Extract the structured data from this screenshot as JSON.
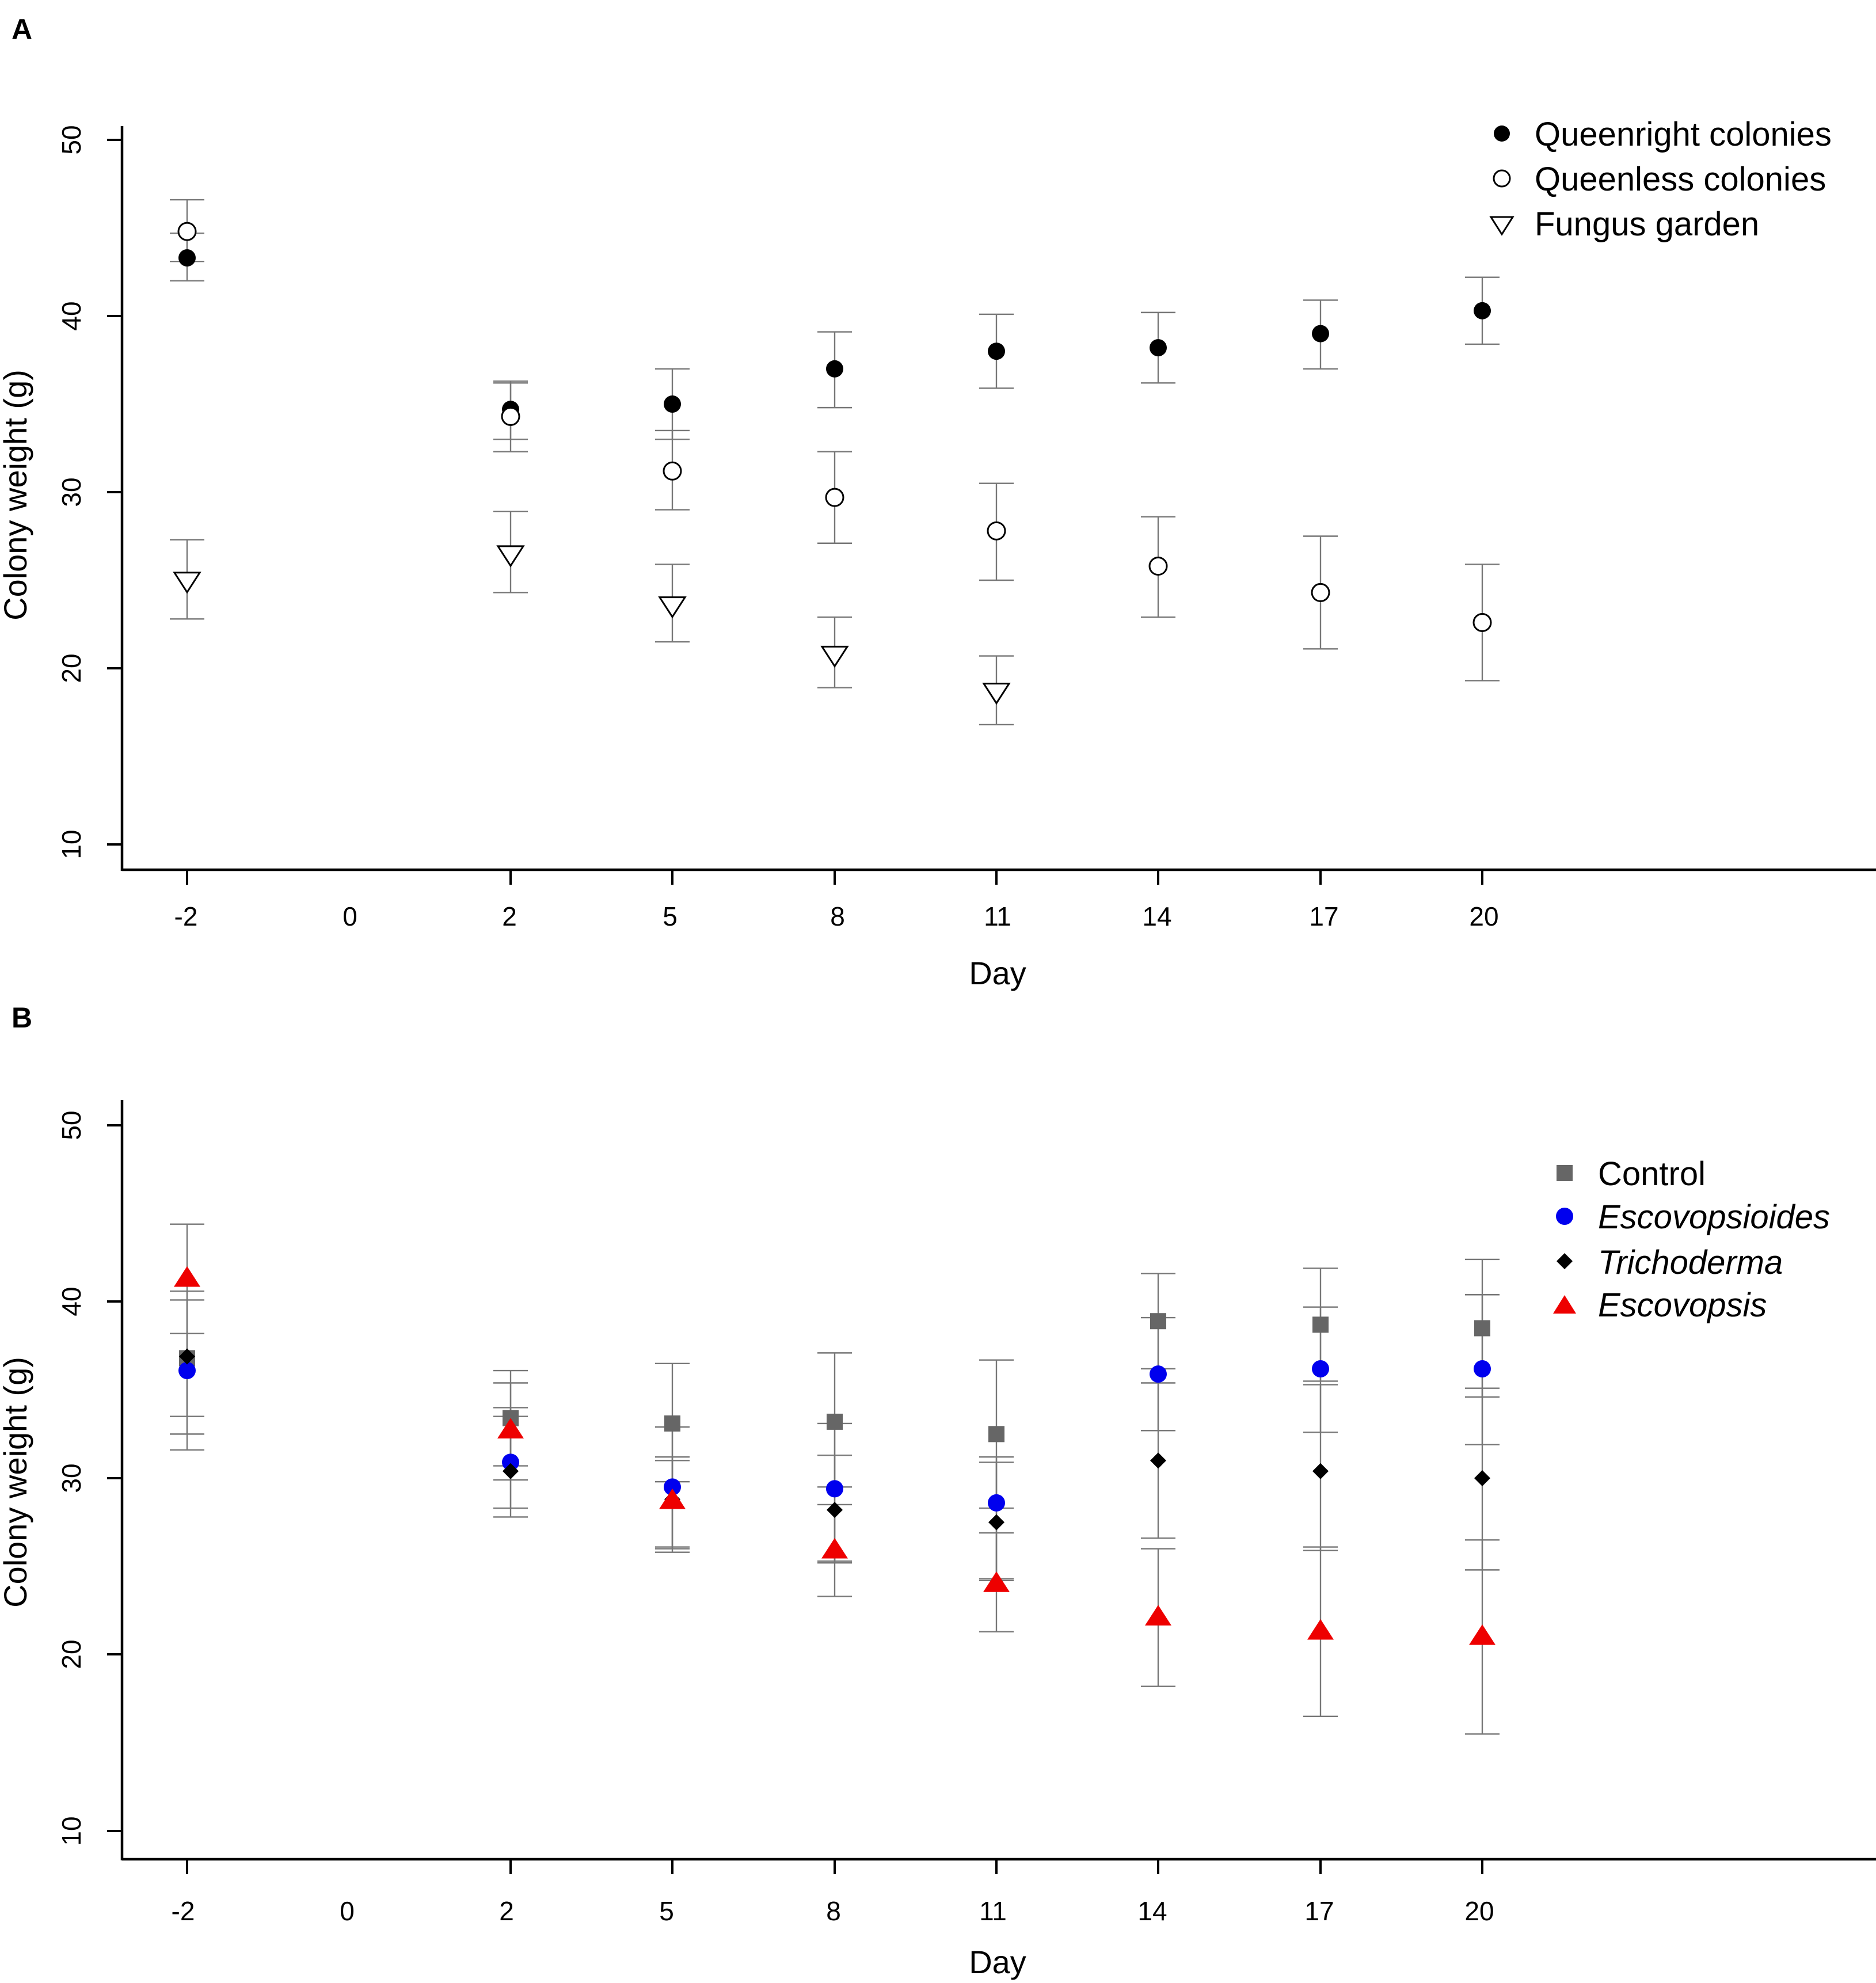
{
  "figure": {
    "panels": [
      {
        "panel_label": "A",
        "xlabel": "Day",
        "ylabel": "Colony weight (g)",
        "x_tick_labels": [
          "-2",
          "0",
          "2",
          "5",
          "8",
          "11",
          "14",
          "17",
          "20"
        ],
        "y_tick_labels": [
          "10",
          "20",
          "30",
          "40",
          "50"
        ],
        "legend": [
          {
            "label": "Queenright colonies",
            "marker": "filled-circle",
            "color": "#000000",
            "italic": false
          },
          {
            "label": "Queenless colonies",
            "marker": "open-circle",
            "color": "#000000",
            "italic": false
          },
          {
            "label": "Fungus garden",
            "marker": "open-triangle-down",
            "color": "#000000",
            "italic": false
          }
        ]
      },
      {
        "panel_label": "B",
        "xlabel": "Day",
        "ylabel": "Colony weight (g)",
        "x_tick_labels": [
          "-2",
          "0",
          "2",
          "5",
          "8",
          "11",
          "14",
          "17",
          "20"
        ],
        "y_tick_labels": [
          "10",
          "20",
          "30",
          "40",
          "50"
        ],
        "legend": [
          {
            "label": "Control",
            "marker": "filled-square",
            "color": "#666666",
            "italic": false
          },
          {
            "label": "Escovopsioides",
            "marker": "filled-circle",
            "color": "#0000ee",
            "italic": true
          },
          {
            "label": "Trichoderma",
            "marker": "filled-diamond",
            "color": "#000000",
            "italic": true
          },
          {
            "label": "Escovopsis",
            "marker": "filled-triangle-up",
            "color": "#ee0000",
            "italic": true
          }
        ]
      }
    ]
  },
  "chart_data": [
    {
      "type": "scatter",
      "title": "",
      "panel_label": "A",
      "xlabel": "Day",
      "ylabel": "Colony weight (g)",
      "ylim": [
        10,
        50
      ],
      "x_categories": [
        "-2",
        "0",
        "2",
        "5",
        "8",
        "11",
        "14",
        "17",
        "20"
      ],
      "series": [
        {
          "name": "Queenright colonies",
          "marker": "filled-circle",
          "color": "#000000",
          "x": [
            "-2",
            "2",
            "5",
            "8",
            "11",
            "14",
            "17",
            "20"
          ],
          "y": [
            43.3,
            34.7,
            35.0,
            37.0,
            38.0,
            38.2,
            39.0,
            40.3
          ],
          "err_low": [
            42.0,
            33.0,
            33.0,
            34.8,
            35.9,
            36.2,
            37.0,
            38.4
          ],
          "err_high": [
            44.7,
            36.3,
            37.0,
            39.1,
            40.1,
            40.2,
            40.9,
            42.2
          ]
        },
        {
          "name": "Queenless colonies",
          "marker": "open-circle",
          "color": "#000000",
          "x": [
            "-2",
            "2",
            "5",
            "8",
            "11",
            "14",
            "17",
            "20"
          ],
          "y": [
            44.8,
            34.3,
            31.2,
            29.7,
            27.8,
            25.8,
            24.3,
            22.6
          ],
          "err_low": [
            43.1,
            32.3,
            29.0,
            27.1,
            25.0,
            22.9,
            21.1,
            19.3
          ],
          "err_high": [
            46.6,
            36.2,
            33.5,
            32.3,
            30.5,
            28.6,
            27.5,
            25.9
          ]
        },
        {
          "name": "Fungus garden",
          "marker": "open-triangle-down",
          "color": "#000000",
          "x": [
            "-2",
            "2",
            "5",
            "8",
            "11"
          ],
          "y": [
            25.0,
            26.5,
            23.6,
            20.8,
            18.7
          ],
          "err_low": [
            22.8,
            24.3,
            21.5,
            18.9,
            16.8
          ],
          "err_high": [
            27.3,
            28.9,
            25.9,
            22.9,
            20.7
          ]
        }
      ]
    },
    {
      "type": "scatter",
      "title": "",
      "panel_label": "B",
      "xlabel": "Day",
      "ylabel": "Colony weight (g)",
      "ylim": [
        10,
        50
      ],
      "x_categories": [
        "-2",
        "0",
        "2",
        "5",
        "8",
        "11",
        "14",
        "17",
        "20"
      ],
      "series": [
        {
          "name": "Control",
          "marker": "filled-square",
          "color": "#666666",
          "x": [
            "-2",
            "2",
            "5",
            "8",
            "11",
            "14",
            "17",
            "20"
          ],
          "y": [
            36.8,
            33.4,
            33.1,
            33.2,
            32.5,
            38.9,
            38.7,
            38.5
          ],
          "err_low": [
            33.5,
            30.7,
            29.8,
            29.5,
            28.3,
            36.2,
            35.5,
            34.6
          ],
          "err_high": [
            40.1,
            36.1,
            36.5,
            37.1,
            36.7,
            41.6,
            41.9,
            42.4
          ]
        },
        {
          "name": "Escovopsioides",
          "marker": "filled-circle",
          "color": "#0000ee",
          "x": [
            "-2",
            "2",
            "5",
            "8",
            "11",
            "14",
            "17",
            "20"
          ],
          "y": [
            36.1,
            30.9,
            29.5,
            29.4,
            28.6,
            35.9,
            36.2,
            36.2
          ],
          "err_low": [
            32.5,
            28.3,
            26.0,
            25.3,
            24.2,
            32.7,
            32.6,
            31.9
          ],
          "err_high": [
            38.2,
            33.5,
            32.9,
            33.1,
            31.2,
            39.1,
            39.7,
            40.4
          ]
        },
        {
          "name": "Trichoderma",
          "marker": "filled-diamond",
          "color": "#000000",
          "x": [
            "-2",
            "2",
            "5",
            "8",
            "11",
            "14",
            "17",
            "20"
          ],
          "y": [
            36.9,
            30.4,
            28.8,
            28.2,
            27.5,
            31.0,
            30.4,
            30.0
          ],
          "err_low": [
            31.6,
            27.8,
            25.8,
            25.2,
            24.3,
            26.6,
            25.9,
            24.8
          ],
          "err_high": [
            40.6,
            34.0,
            31.2,
            31.3,
            30.9,
            35.4,
            35.3,
            35.1
          ]
        },
        {
          "name": "Escovopsis",
          "marker": "filled-triangle-up",
          "color": "#ee0000",
          "x": [
            "-2",
            "2",
            "5",
            "8",
            "11",
            "14",
            "17",
            "20"
          ],
          "y": [
            41.3,
            32.7,
            28.7,
            25.9,
            24.0,
            22.1,
            21.3,
            21.0
          ],
          "err_low": [
            38.2,
            29.9,
            26.1,
            23.3,
            21.3,
            18.2,
            16.5,
            15.5
          ],
          "err_high": [
            44.4,
            35.4,
            31.0,
            28.5,
            26.9,
            26.0,
            26.1,
            26.5
          ]
        }
      ]
    }
  ]
}
